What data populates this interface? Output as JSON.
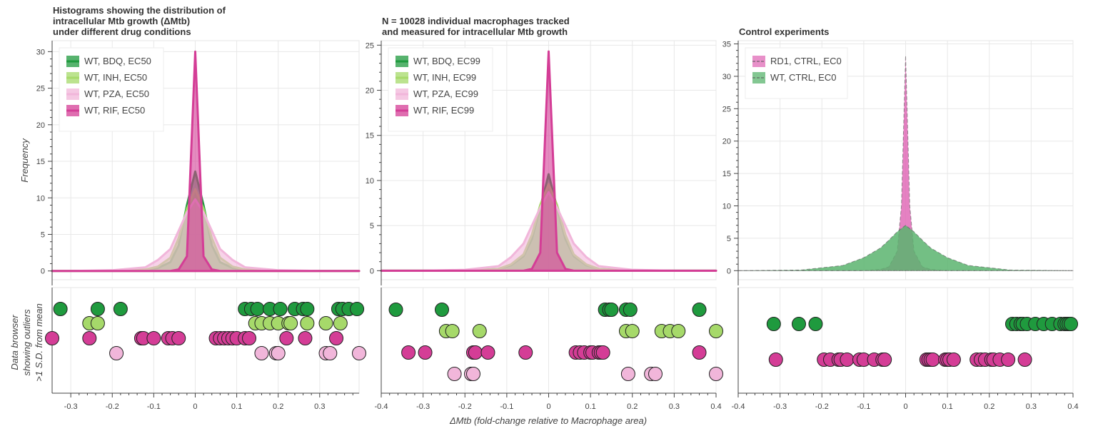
{
  "common_xlabel": "ΔMtb (fold-change relative to Macrophage area)",
  "ylabel_top": "Frequency",
  "ylabel_bottom": [
    "Data browser",
    "showing outliers",
    ">1 S.D. from mean"
  ],
  "colors": {
    "bdq": "#1f9a3e",
    "inh": "#a6d96a",
    "pza": "#f1b6da",
    "rif": "#d43d96",
    "rd1": "#e06bb7",
    "ctrl": "#5ab46e"
  },
  "chart_data": [
    {
      "type": "area",
      "title": [
        "Histograms showing the distribution of",
        "intracellular Mtb growth (ΔMtb)",
        "under different drug conditions"
      ],
      "xlim": [
        -0.345,
        0.395
      ],
      "ylim": [
        -1.2,
        31.5
      ],
      "xticks": [
        "-0.3",
        "-0.2",
        "-0.1",
        "0",
        "0.1",
        "0.2",
        "0.3"
      ],
      "xtick_values": [
        -0.3,
        -0.2,
        -0.1,
        0,
        0.1,
        0.2,
        0.3
      ],
      "yticks": [
        0,
        5,
        10,
        15,
        20,
        25,
        30
      ],
      "grid": true,
      "legend_position": "top-left",
      "x": [
        -0.345,
        -0.3,
        -0.2,
        -0.12,
        -0.09,
        -0.06,
        -0.04,
        -0.02,
        0,
        0.02,
        0.04,
        0.06,
        0.09,
        0.12,
        0.2,
        0.3,
        0.395
      ],
      "series": [
        {
          "name": "WT, BDQ, EC50",
          "color_key": "bdq",
          "values": [
            0,
            0,
            0,
            0.1,
            0.4,
            1.2,
            3.5,
            9.0,
            13.6,
            9.0,
            3.5,
            1.2,
            0.4,
            0.1,
            0,
            0,
            0
          ]
        },
        {
          "name": "WT, INH, EC50",
          "color_key": "inh",
          "values": [
            0,
            0,
            0,
            0.2,
            0.6,
            1.8,
            4.5,
            8.5,
            11.2,
            8.5,
            4.5,
            1.8,
            0.6,
            0.2,
            0,
            0,
            0
          ]
        },
        {
          "name": "WT, PZA, EC50",
          "color_key": "pza",
          "values": [
            0,
            0,
            0.1,
            0.5,
            1.5,
            3.0,
            5.5,
            8.0,
            9.8,
            8.0,
            5.5,
            3.0,
            1.5,
            0.5,
            0.1,
            0,
            0
          ]
        },
        {
          "name": "WT, RIF, EC50",
          "color_key": "rif",
          "values": [
            0,
            0,
            0,
            0,
            0,
            0,
            0.2,
            2.0,
            30.0,
            2.0,
            0.2,
            0,
            0,
            0,
            0,
            0,
            0
          ]
        }
      ],
      "outliers": [
        {
          "row": 0,
          "color_key": "bdq",
          "x": [
            -0.325,
            -0.235,
            -0.18,
            0.12,
            0.135,
            0.15,
            0.18,
            0.205,
            0.24,
            0.26,
            0.27,
            0.345,
            0.355,
            0.37,
            0.39
          ]
        },
        {
          "row": 1,
          "color_key": "inh",
          "x": [
            -0.255,
            -0.235,
            0.145,
            0.16,
            0.18,
            0.2,
            0.225,
            0.23,
            0.27,
            0.315,
            0.35
          ]
        },
        {
          "row": 2,
          "color_key": "rif",
          "x": [
            -0.345,
            -0.255,
            -0.13,
            -0.125,
            -0.1,
            -0.065,
            -0.055,
            -0.04,
            0.05,
            0.06,
            0.07,
            0.08,
            0.09,
            0.1,
            0.12,
            0.13,
            0.22,
            0.265,
            0.34
          ]
        },
        {
          "row": 3,
          "color_key": "pza",
          "x": [
            -0.19,
            0.16,
            0.195,
            0.2,
            0.315,
            0.325,
            0.395
          ]
        }
      ]
    },
    {
      "type": "area",
      "title": [
        "N = 10028 individual macrophages tracked",
        "and measured for intracellular Mtb growth"
      ],
      "xlim": [
        -0.4,
        0.4
      ],
      "ylim": [
        -1.0,
        25.5
      ],
      "xticks": [
        "-0.4",
        "-0.3",
        "-0.2",
        "-0.1",
        "0",
        "0.1",
        "0.2",
        "0.3",
        "0.4"
      ],
      "xtick_values": [
        -0.4,
        -0.3,
        -0.2,
        -0.1,
        0,
        0.1,
        0.2,
        0.3,
        0.4
      ],
      "yticks": [
        0,
        5,
        10,
        15,
        20,
        25
      ],
      "grid": true,
      "legend_position": "top-left",
      "x": [
        -0.4,
        -0.3,
        -0.2,
        -0.12,
        -0.09,
        -0.06,
        -0.04,
        -0.02,
        0,
        0.02,
        0.04,
        0.06,
        0.09,
        0.12,
        0.2,
        0.3,
        0.4
      ],
      "series": [
        {
          "name": "WT, BDQ, EC99",
          "color_key": "bdq",
          "values": [
            0,
            0,
            0,
            0.2,
            0.6,
            1.6,
            3.5,
            7.0,
            10.7,
            7.0,
            3.5,
            1.6,
            0.6,
            0.2,
            0,
            0,
            0
          ]
        },
        {
          "name": "WT, INH, EC99",
          "color_key": "inh",
          "values": [
            0,
            0,
            0,
            0.2,
            0.7,
            1.8,
            4.0,
            7.3,
            9.6,
            7.3,
            4.0,
            1.8,
            0.7,
            0.2,
            0,
            0,
            0
          ]
        },
        {
          "name": "WT, PZA, EC99",
          "color_key": "pza",
          "values": [
            0,
            0,
            0.1,
            0.5,
            1.5,
            3.0,
            5.0,
            7.0,
            8.7,
            7.0,
            5.0,
            3.0,
            1.5,
            0.5,
            0.1,
            0,
            0
          ]
        },
        {
          "name": "WT, RIF, EC99",
          "color_key": "rif",
          "values": [
            0,
            0,
            0,
            0,
            0,
            0,
            0.2,
            2.0,
            24.3,
            2.0,
            0.2,
            0,
            0,
            0,
            0,
            0,
            0
          ]
        }
      ],
      "outliers": [
        {
          "row": 0,
          "color_key": "bdq",
          "x": [
            -0.365,
            -0.255,
            0.135,
            0.145,
            0.15,
            0.185,
            0.195,
            0.36
          ]
        },
        {
          "row": 1,
          "color_key": "inh",
          "x": [
            -0.245,
            -0.23,
            -0.165,
            0.185,
            0.2,
            0.27,
            0.29,
            0.31,
            0.4
          ]
        },
        {
          "row": 2,
          "color_key": "rif",
          "x": [
            -0.335,
            -0.295,
            -0.18,
            -0.175,
            -0.145,
            -0.055,
            0.065,
            0.075,
            0.085,
            0.1,
            0.105,
            0.12,
            0.125,
            0.13,
            0.36
          ]
        },
        {
          "row": 3,
          "color_key": "pza",
          "x": [
            -0.225,
            -0.185,
            -0.18,
            0.19,
            0.245,
            0.255,
            0.4
          ]
        }
      ]
    },
    {
      "type": "area",
      "title": [
        "Control experiments"
      ],
      "xlim": [
        -0.4,
        0.4
      ],
      "ylim": [
        -1.4,
        35.5
      ],
      "xticks": [
        "-0.4",
        "-0.3",
        "-0.2",
        "-0.1",
        "0",
        "0.1",
        "0.2",
        "0.3",
        "0.4"
      ],
      "xtick_values": [
        -0.4,
        -0.3,
        -0.2,
        -0.1,
        0,
        0.1,
        0.2,
        0.3,
        0.4
      ],
      "yticks": [
        0,
        5,
        10,
        15,
        20,
        25,
        30,
        35
      ],
      "grid": true,
      "legend_position": "top-left",
      "x": [
        -0.4,
        -0.25,
        -0.15,
        -0.1,
        -0.06,
        -0.04,
        -0.02,
        -0.01,
        0,
        0.01,
        0.02,
        0.04,
        0.06,
        0.1,
        0.15,
        0.25,
        0.4
      ],
      "series": [
        {
          "name": "RD1, CTRL, EC0",
          "color_key": "rd1",
          "dashed": true,
          "values": [
            0,
            0,
            0,
            0,
            0.2,
            0.6,
            3.0,
            10.0,
            33.2,
            10.0,
            3.0,
            0.6,
            0.2,
            0,
            0,
            0,
            0
          ]
        },
        {
          "name": "WT, CTRL, EC0",
          "color_key": "ctrl",
          "dashed": true,
          "values": [
            0,
            0.1,
            0.8,
            2.0,
            3.5,
            4.7,
            6.0,
            6.5,
            7.0,
            6.5,
            6.0,
            4.7,
            3.5,
            2.0,
            0.8,
            0.1,
            0
          ]
        }
      ],
      "outliers": [
        {
          "row": 1,
          "color_key": "bdq",
          "x": [
            -0.315,
            -0.255,
            -0.215,
            0.255,
            0.265,
            0.275,
            0.28,
            0.29,
            0.31,
            0.33,
            0.35,
            0.37,
            0.38,
            0.385,
            0.39,
            0.395
          ]
        },
        {
          "row": 3,
          "color_key": "rif",
          "x": [
            -0.31,
            -0.195,
            -0.18,
            -0.16,
            -0.155,
            -0.14,
            -0.11,
            -0.1,
            -0.075,
            -0.055,
            -0.05,
            0.05,
            0.055,
            0.06,
            0.065,
            0.095,
            0.1,
            0.105,
            0.115,
            0.17,
            0.18,
            0.19,
            0.205,
            0.21,
            0.225,
            0.245,
            0.285
          ]
        }
      ]
    }
  ]
}
